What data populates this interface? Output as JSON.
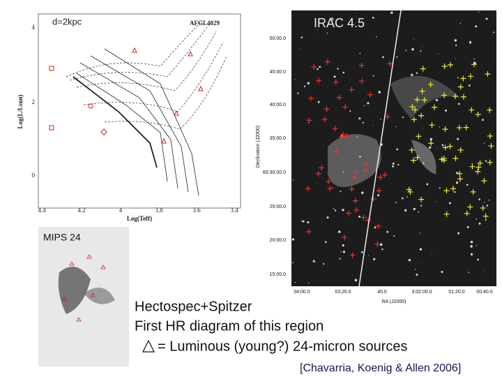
{
  "hr_diagram": {
    "distance_label": "d=2kpc",
    "object_label": "AFGL4029",
    "x_axis_title": "Log(Teff)",
    "y_axis_title": "Log(L/Lsun)",
    "x_ticks": [
      "4.4",
      "4.2",
      "4",
      "3.8",
      "3.6",
      "3.4"
    ],
    "y_ticks": [
      "4",
      "2",
      "0"
    ]
  },
  "irac_image": {
    "label": "IRAC 4.5",
    "dec_title": "Declination (J2000)",
    "dec_ticks": [
      "50:00.0",
      "45:00.0",
      "40:00.0",
      "35:00.0",
      "60:30:00.0",
      "25:00.0",
      "20:00.0",
      "15:00.0"
    ],
    "ra_title": "RA (J2000)",
    "ra_ticks": [
      "04:00.0",
      "03:20.0",
      "40.0",
      "3:02:00.0",
      "01:20.0",
      "00:40.0"
    ]
  },
  "mips_image": {
    "label": "MIPS 24"
  },
  "caption": {
    "lines": [
      "Hectospec+Spitzer",
      "First HR diagram of this region"
    ],
    "legend_text": "= Luminous (young?) 24-micron sources",
    "citation": "[Chavarria, Koenig & Allen 2006]"
  }
}
